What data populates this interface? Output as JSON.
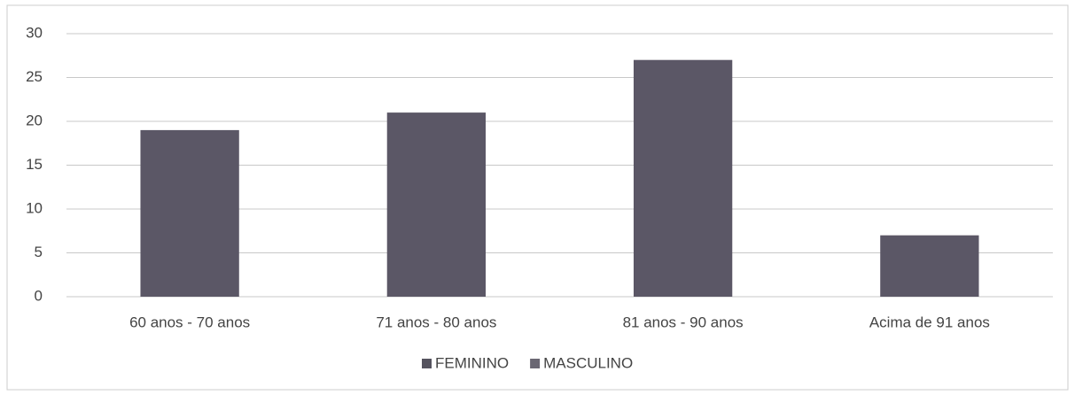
{
  "chart_data": {
    "type": "bar",
    "categories": [
      "60 anos - 70 anos",
      "71 anos - 80 anos",
      "81 anos - 90 anos",
      "Acima de 91 anos"
    ],
    "values": [
      19,
      21,
      27,
      7
    ],
    "color": "#5b5766",
    "legend": [
      {
        "name": "FEMININO",
        "color": "#55535e"
      },
      {
        "name": "MASCULINO",
        "color": "#6a6773"
      }
    ],
    "ylim": [
      0,
      30
    ],
    "yticks": [
      0,
      5,
      10,
      15,
      20,
      25,
      30
    ],
    "grid": true
  }
}
